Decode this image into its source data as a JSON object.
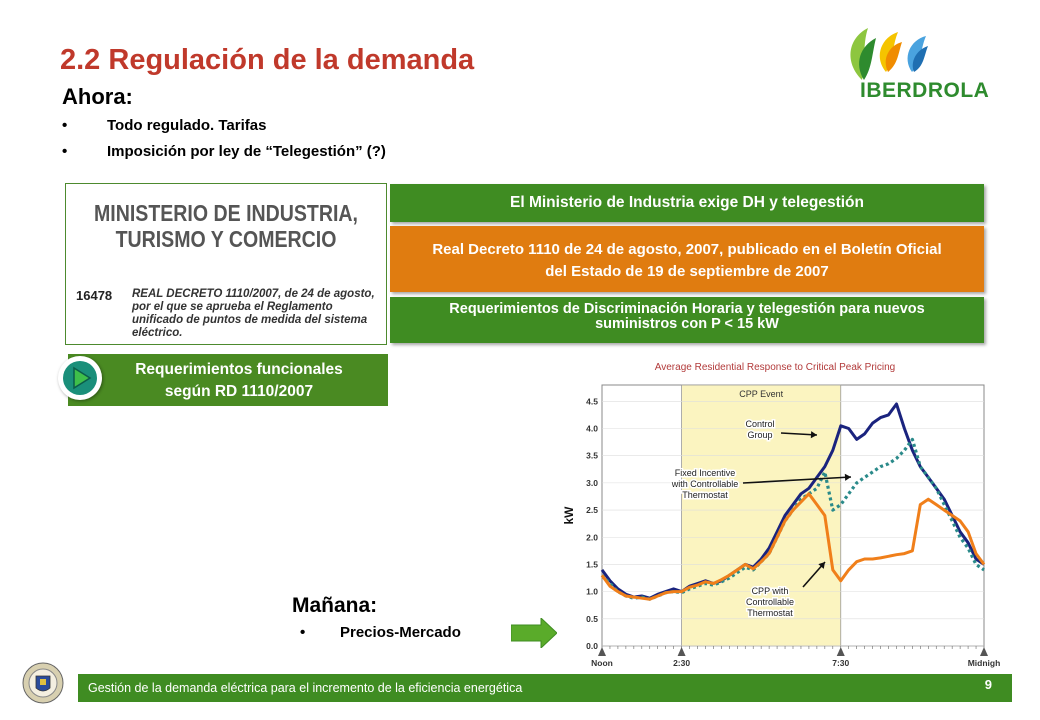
{
  "slide": {
    "title": "2.2 Regulación de la demanda",
    "now_heading": "Ahora:",
    "now_bullets": [
      "Todo regulado. Tarifas",
      "Imposición por ley de “Telegestión” (?)"
    ],
    "bullet_symbol": "•",
    "logo_text": "IBERDROLA",
    "logo_colors": {
      "green": "#2e8b2e",
      "light_green": "#8dc63f",
      "yellow": "#f5c400",
      "blue": "#4aa3df"
    }
  },
  "ministry": {
    "title_line1": "MINISTERIO DE INDUSTRIA,",
    "title_line2": "TURISMO Y COMERCIO",
    "number": "16478",
    "decree_text": "REAL DECRETO 1110/2007, de 24 de agosto, por el que se aprueba el Reglamento unificado de puntos de medida del sistema eléctrico."
  },
  "banners": {
    "green1": "El Ministerio de Industria exige DH y telegestión",
    "orange": "Real Decreto 1110 de 24 de agosto, 2007, publicado en el Boletín Oficial del Estado de 19 de septiembre de 2007",
    "green2": "Requerimientos de Discriminación Horaria y telegestión para nuevos suministros con P < 15 kW",
    "colors": {
      "green": "#3f8c22",
      "orange": "#e07c10"
    }
  },
  "requirements_button": {
    "line1": "Requerimientos funcionales",
    "line2": "según RD 1110/2007",
    "icon": "play-arrow-icon"
  },
  "tomorrow": {
    "heading": "Mañana:",
    "bullet": "Precios-Mercado",
    "arrow_icon": "right-arrow-icon"
  },
  "footer": {
    "text": "Gestión de la demanda eléctrica para el incremento de la eficiencia energética",
    "page": "9",
    "seal_icon": "university-seal-icon"
  },
  "chart_data": {
    "type": "line",
    "title": "Average Residential Response to Critical Peak Pricing",
    "ylabel": "kW",
    "ylim": [
      0,
      4.8
    ],
    "yticks": [
      "0.0",
      "0.5",
      "1.0",
      "1.5",
      "2.0",
      "2.5",
      "3.0",
      "3.5",
      "4.0",
      "4.5"
    ],
    "x_hours": [
      12,
      24
    ],
    "x_markers": [
      {
        "label": "Noon",
        "hour": 12
      },
      {
        "label": "2:30",
        "hour": 14.5
      },
      {
        "label": "7:30",
        "hour": 19.5
      },
      {
        "label": "Midnigh",
        "hour": 24
      }
    ],
    "cpp_event": {
      "label": "CPP Event",
      "start": 14.5,
      "end": 19.5,
      "color": "#fbf4c0"
    },
    "annotations": {
      "control": "Control Group",
      "fixed": "Fixed Incentive with Controllable Thermostat",
      "cpp": "CPP with Controllable Thermostat"
    },
    "x": [
      12,
      12.25,
      12.5,
      12.75,
      13,
      13.25,
      13.5,
      13.75,
      14,
      14.25,
      14.5,
      14.75,
      15,
      15.25,
      15.5,
      15.75,
      16,
      16.25,
      16.5,
      16.75,
      17,
      17.25,
      17.5,
      17.75,
      18,
      18.25,
      18.5,
      18.75,
      19,
      19.25,
      19.5,
      19.75,
      20,
      20.25,
      20.5,
      20.75,
      21,
      21.25,
      21.5,
      21.75,
      22,
      22.25,
      22.5,
      22.75,
      23,
      23.25,
      23.5,
      23.75,
      24
    ],
    "series": [
      {
        "name": "Control Group",
        "color": "#1a237e",
        "style": "solid",
        "values": [
          1.4,
          1.2,
          1.05,
          0.95,
          0.9,
          0.92,
          0.88,
          0.95,
          1.0,
          1.05,
          1.0,
          1.1,
          1.15,
          1.2,
          1.15,
          1.2,
          1.3,
          1.4,
          1.5,
          1.45,
          1.6,
          1.8,
          2.1,
          2.4,
          2.6,
          2.8,
          2.9,
          3.1,
          3.3,
          3.6,
          4.05,
          4.0,
          3.8,
          3.9,
          4.1,
          4.2,
          4.25,
          4.45,
          4.0,
          3.6,
          3.3,
          3.1,
          2.9,
          2.7,
          2.4,
          2.1,
          1.9,
          1.6,
          1.5
        ]
      },
      {
        "name": "Fixed Incentive with Controllable Thermostat",
        "color": "#2a8a8a",
        "style": "dotted",
        "values": [
          1.3,
          1.15,
          1.0,
          0.92,
          0.88,
          0.9,
          0.86,
          0.92,
          0.98,
          1.0,
          0.98,
          1.05,
          1.1,
          1.15,
          1.12,
          1.18,
          1.25,
          1.35,
          1.45,
          1.4,
          1.55,
          1.7,
          2.0,
          2.3,
          2.5,
          2.7,
          2.8,
          2.9,
          3.2,
          2.5,
          2.6,
          2.8,
          3.0,
          3.1,
          3.2,
          3.3,
          3.35,
          3.45,
          3.6,
          3.8,
          3.3,
          3.1,
          2.9,
          2.6,
          2.3,
          2.0,
          1.8,
          1.5,
          1.4
        ]
      },
      {
        "name": "CPP with Controllable Thermostat",
        "color": "#f07f1a",
        "style": "solid",
        "values": [
          1.3,
          1.1,
          1.0,
          0.92,
          0.9,
          0.88,
          0.86,
          0.92,
          0.98,
          1.0,
          1.0,
          1.08,
          1.12,
          1.18,
          1.15,
          1.22,
          1.3,
          1.4,
          1.5,
          1.42,
          1.55,
          1.7,
          2.0,
          2.3,
          2.5,
          2.65,
          2.8,
          2.6,
          2.4,
          1.4,
          1.2,
          1.4,
          1.55,
          1.6,
          1.6,
          1.62,
          1.65,
          1.68,
          1.7,
          1.75,
          2.6,
          2.7,
          2.6,
          2.5,
          2.4,
          2.3,
          2.1,
          1.7,
          1.5
        ]
      }
    ]
  }
}
